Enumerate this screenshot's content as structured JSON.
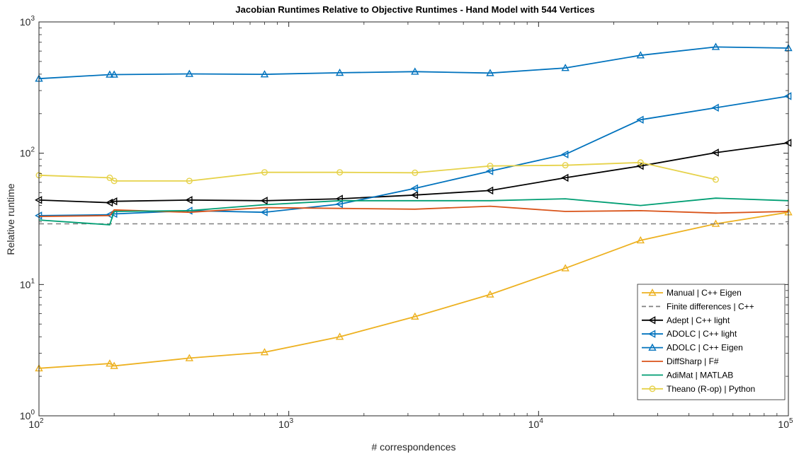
{
  "chart_data": {
    "type": "line",
    "title": "Jacobian Runtimes Relative to Objective Runtimes - Hand Model with 544 Vertices",
    "xlabel": "# correspondences",
    "ylabel": "Relative runtime",
    "xscale": "log",
    "yscale": "log",
    "xlim": [
      100,
      100000
    ],
    "ylim": [
      1,
      1000
    ],
    "xticks": [
      {
        "base": "10",
        "exp": "2",
        "value": 100
      },
      {
        "base": "10",
        "exp": "3",
        "value": 1000
      },
      {
        "base": "10",
        "exp": "4",
        "value": 10000
      },
      {
        "base": "10",
        "exp": "5",
        "value": 100000
      }
    ],
    "yticks": [
      {
        "base": "10",
        "exp": "0",
        "value": 1
      },
      {
        "base": "10",
        "exp": "1",
        "value": 10
      },
      {
        "base": "10",
        "exp": "2",
        "value": 100
      },
      {
        "base": "10",
        "exp": "3",
        "value": 1000
      }
    ],
    "grid": false,
    "legend_position": "bottom-right",
    "series": [
      {
        "name": "Manual | C++ Eigen",
        "color": "#EDB120",
        "marker": "triangle-up",
        "dashed": false,
        "x": [
          100,
          192,
          200,
          400,
          800,
          1600,
          3200,
          6400,
          12800,
          25600,
          51200,
          100000
        ],
        "y": [
          2.3,
          2.5,
          2.4,
          2.75,
          3.05,
          4.0,
          5.7,
          8.4,
          13.3,
          21.7,
          29.0,
          35.5
        ]
      },
      {
        "name": "Finite differences | C++",
        "color": "#808080",
        "marker": "none",
        "dashed": true,
        "x": [
          100,
          100000
        ],
        "y": [
          29.0,
          29.0
        ]
      },
      {
        "name": "Adept | C++ light",
        "color": "#000000",
        "marker": "triangle-left",
        "dashed": false,
        "x": [
          100,
          192,
          200,
          400,
          800,
          1600,
          3200,
          6400,
          12800,
          25600,
          51200,
          100000
        ],
        "y": [
          44,
          42,
          43,
          44,
          43.5,
          45,
          48,
          52,
          65,
          80,
          101,
          120
        ]
      },
      {
        "name": "ADOLC | C++ light",
        "color": "#0072BD",
        "marker": "triangle-left",
        "dashed": false,
        "x": [
          100,
          192,
          200,
          400,
          800,
          1600,
          3200,
          6400,
          12800,
          25600,
          51200,
          100000
        ],
        "y": [
          33.5,
          34,
          34.5,
          36.5,
          35.5,
          41,
          54,
          73,
          98,
          180,
          222,
          272
        ]
      },
      {
        "name": "ADOLC | C++ Eigen",
        "color": "#0072BD",
        "marker": "triangle-up",
        "dashed": false,
        "x": [
          100,
          192,
          200,
          400,
          800,
          1600,
          3200,
          6400,
          12800,
          25600,
          51200,
          100000
        ],
        "y": [
          370,
          397,
          397,
          402,
          399,
          410,
          418,
          408,
          446,
          557,
          645,
          632
        ]
      },
      {
        "name": "DiffSharp | F#",
        "color": "#D95319",
        "marker": "none",
        "dashed": false,
        "x": [
          100,
          192,
          200,
          400,
          800,
          1600,
          3200,
          6400,
          12800,
          25600,
          51200,
          100000
        ],
        "y": [
          33,
          33.5,
          37,
          35.5,
          38.5,
          38,
          37.5,
          39.5,
          36,
          36.5,
          35,
          36
        ]
      },
      {
        "name": "AdiMat | MATLAB",
        "color": "#009E73",
        "marker": "none",
        "dashed": false,
        "x": [
          100,
          192,
          200,
          400,
          800,
          1600,
          3200,
          6400,
          12800,
          25600,
          51200,
          100000
        ],
        "y": [
          31,
          28.5,
          36,
          36.5,
          40.5,
          43.5,
          43.5,
          43.5,
          45,
          40,
          45.5,
          43.5
        ]
      },
      {
        "name": "Theano (R-op) | Python",
        "color": "#E6D24A",
        "marker": "circle",
        "dashed": false,
        "x": [
          100,
          192,
          200,
          400,
          800,
          1600,
          3200,
          6400,
          12800,
          25600,
          51200
        ],
        "y": [
          68,
          65,
          61.5,
          61.5,
          71.5,
          71.5,
          71,
          80,
          81,
          85,
          63
        ]
      }
    ]
  }
}
